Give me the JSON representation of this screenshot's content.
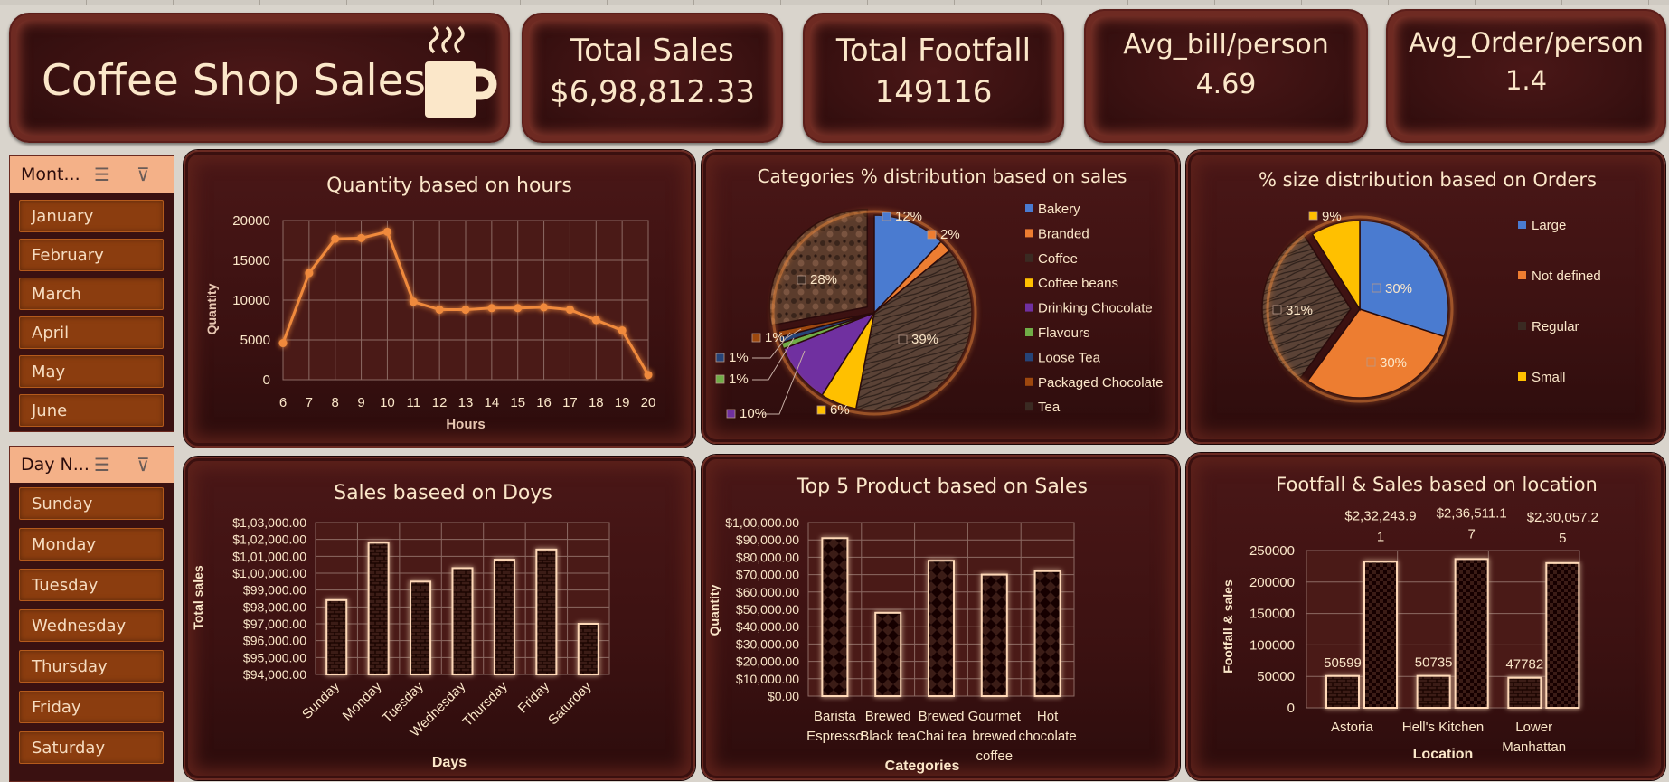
{
  "header": {
    "title": "Coffee Shop Sales",
    "title_icon": "coffee-cup-icon",
    "kpis": [
      {
        "label": "Total Sales",
        "value": "$6,98,812.33"
      },
      {
        "label": "Total Footfall",
        "value": "149116"
      },
      {
        "label": "Avg_bill/person",
        "value": "4.69"
      },
      {
        "label": "Avg_Order/person",
        "value": "1.4"
      }
    ]
  },
  "slicers": {
    "month": {
      "title": "Mont...",
      "items": [
        "January",
        "February",
        "March",
        "April",
        "May",
        "June"
      ]
    },
    "day": {
      "title": "Day N...",
      "items": [
        "Sunday",
        "Monday",
        "Tuesday",
        "Wednesday",
        "Thursday",
        "Friday",
        "Saturday"
      ]
    }
  },
  "colors": {
    "accent_orange": "#f08a3c",
    "bakery": "#4a7bd0",
    "branded": "#ed7d31",
    "coffee": "#5a4236",
    "coffee_beans": "#ffc000",
    "drinking_chocolate": "#7030a0",
    "flavours": "#70ad47",
    "loose_tea": "#264478",
    "packaged_chocolate": "#9e480e",
    "tea": "#636363",
    "text": "#fbe7c9"
  },
  "chart_data": [
    {
      "type": "line",
      "title": "Quantity based on hours",
      "xlabel": "Hours",
      "ylabel": "Quantity",
      "x": [
        6,
        7,
        8,
        9,
        10,
        11,
        12,
        13,
        14,
        15,
        16,
        17,
        18,
        19,
        20
      ],
      "values": [
        4600,
        13400,
        17700,
        17800,
        18600,
        9800,
        8800,
        8800,
        9000,
        9000,
        9100,
        8800,
        7500,
        6200,
        600
      ],
      "ylim": [
        0,
        20000
      ],
      "yticks": [
        "20000",
        "15000",
        "10000",
        "5000",
        "0"
      ],
      "grid": true
    },
    {
      "type": "pie",
      "title": "Categories % distribution based on sales",
      "categories": [
        "Bakery",
        "Branded",
        "Coffee",
        "Coffee beans",
        "Drinking Chocolate",
        "Flavours",
        "Loose Tea",
        "Packaged Chocolate",
        "Tea"
      ],
      "values": [
        12,
        2,
        39,
        6,
        10,
        1,
        1,
        1,
        28
      ],
      "labels": [
        "12%",
        "2%",
        "39%",
        "6%",
        "10%",
        "1%",
        "1%",
        "1%",
        "28%"
      ],
      "legend": "right"
    },
    {
      "type": "pie",
      "title": "% size distribution based on Orders",
      "categories": [
        "Large",
        "Not defined",
        "Regular",
        "Small"
      ],
      "values": [
        30,
        30,
        31,
        9
      ],
      "labels": [
        "30%",
        "30%",
        "31%",
        "9%"
      ],
      "legend": "right"
    },
    {
      "type": "bar",
      "title": "Sales baseed on Doys",
      "xlabel": "Days",
      "ylabel": "Total sales",
      "categories": [
        "Sunday",
        "Monday",
        "Tuesday",
        "Wednesday",
        "Thursday",
        "Friday",
        "Saturday"
      ],
      "values": [
        98400,
        101800,
        99500,
        100300,
        100800,
        101400,
        97000
      ],
      "ylim": [
        94000,
        103000
      ],
      "yticks": [
        "$1,03,000.00",
        "$1,02,000.00",
        "$1,01,000.00",
        "$1,00,000.00",
        "$99,000.00",
        "$98,000.00",
        "$97,000.00",
        "$96,000.00",
        "$95,000.00",
        "$94,000.00"
      ],
      "grid": true
    },
    {
      "type": "bar",
      "title": "Top 5 Product based on Sales",
      "xlabel": "Categories",
      "ylabel": "Quantity",
      "categories": [
        "Barista Espresso",
        "Brewed Black tea",
        "Brewed Chai tea",
        "Gourmet brewed coffee",
        "Hot chocolate"
      ],
      "category_lines": [
        [
          "Barista",
          "Espresso"
        ],
        [
          "Brewed",
          "Black tea"
        ],
        [
          "Brewed",
          "Chai tea"
        ],
        [
          "Gourmet",
          "brewed",
          "coffee"
        ],
        [
          "Hot",
          "chocolate"
        ]
      ],
      "values": [
        91000,
        48000,
        78000,
        70000,
        72000
      ],
      "ylim": [
        0,
        100000
      ],
      "yticks": [
        "$1,00,000.00",
        "$90,000.00",
        "$80,000.00",
        "$70,000.00",
        "$60,000.00",
        "$50,000.00",
        "$40,000.00",
        "$30,000.00",
        "$20,000.00",
        "$10,000.00",
        "$0.00"
      ],
      "grid": true
    },
    {
      "type": "bar",
      "title": "Footfall & Sales based on location",
      "xlabel": "Location",
      "ylabel": "Footfall & sales",
      "categories": [
        "Astoria",
        "Hell's Kitchen",
        "Lower Manhattan"
      ],
      "category_lines": [
        [
          "Astoria"
        ],
        [
          "Hell's Kitchen"
        ],
        [
          "Lower",
          "Manhattan"
        ]
      ],
      "series": [
        {
          "values": [
            50599,
            50735,
            47782
          ],
          "labels": [
            "50599",
            "50735",
            "47782"
          ]
        },
        {
          "values": [
            232243.91,
            236511.17,
            230057.25
          ],
          "labels": [
            [
              "$2,32,243.9",
              "1"
            ],
            [
              "$2,36,511.1",
              "7"
            ],
            [
              "$2,30,057.2",
              "5"
            ]
          ]
        }
      ],
      "ylim": [
        0,
        250000
      ],
      "yticks": [
        "250000",
        "200000",
        "150000",
        "100000",
        "50000",
        "0"
      ],
      "grid": true
    }
  ]
}
